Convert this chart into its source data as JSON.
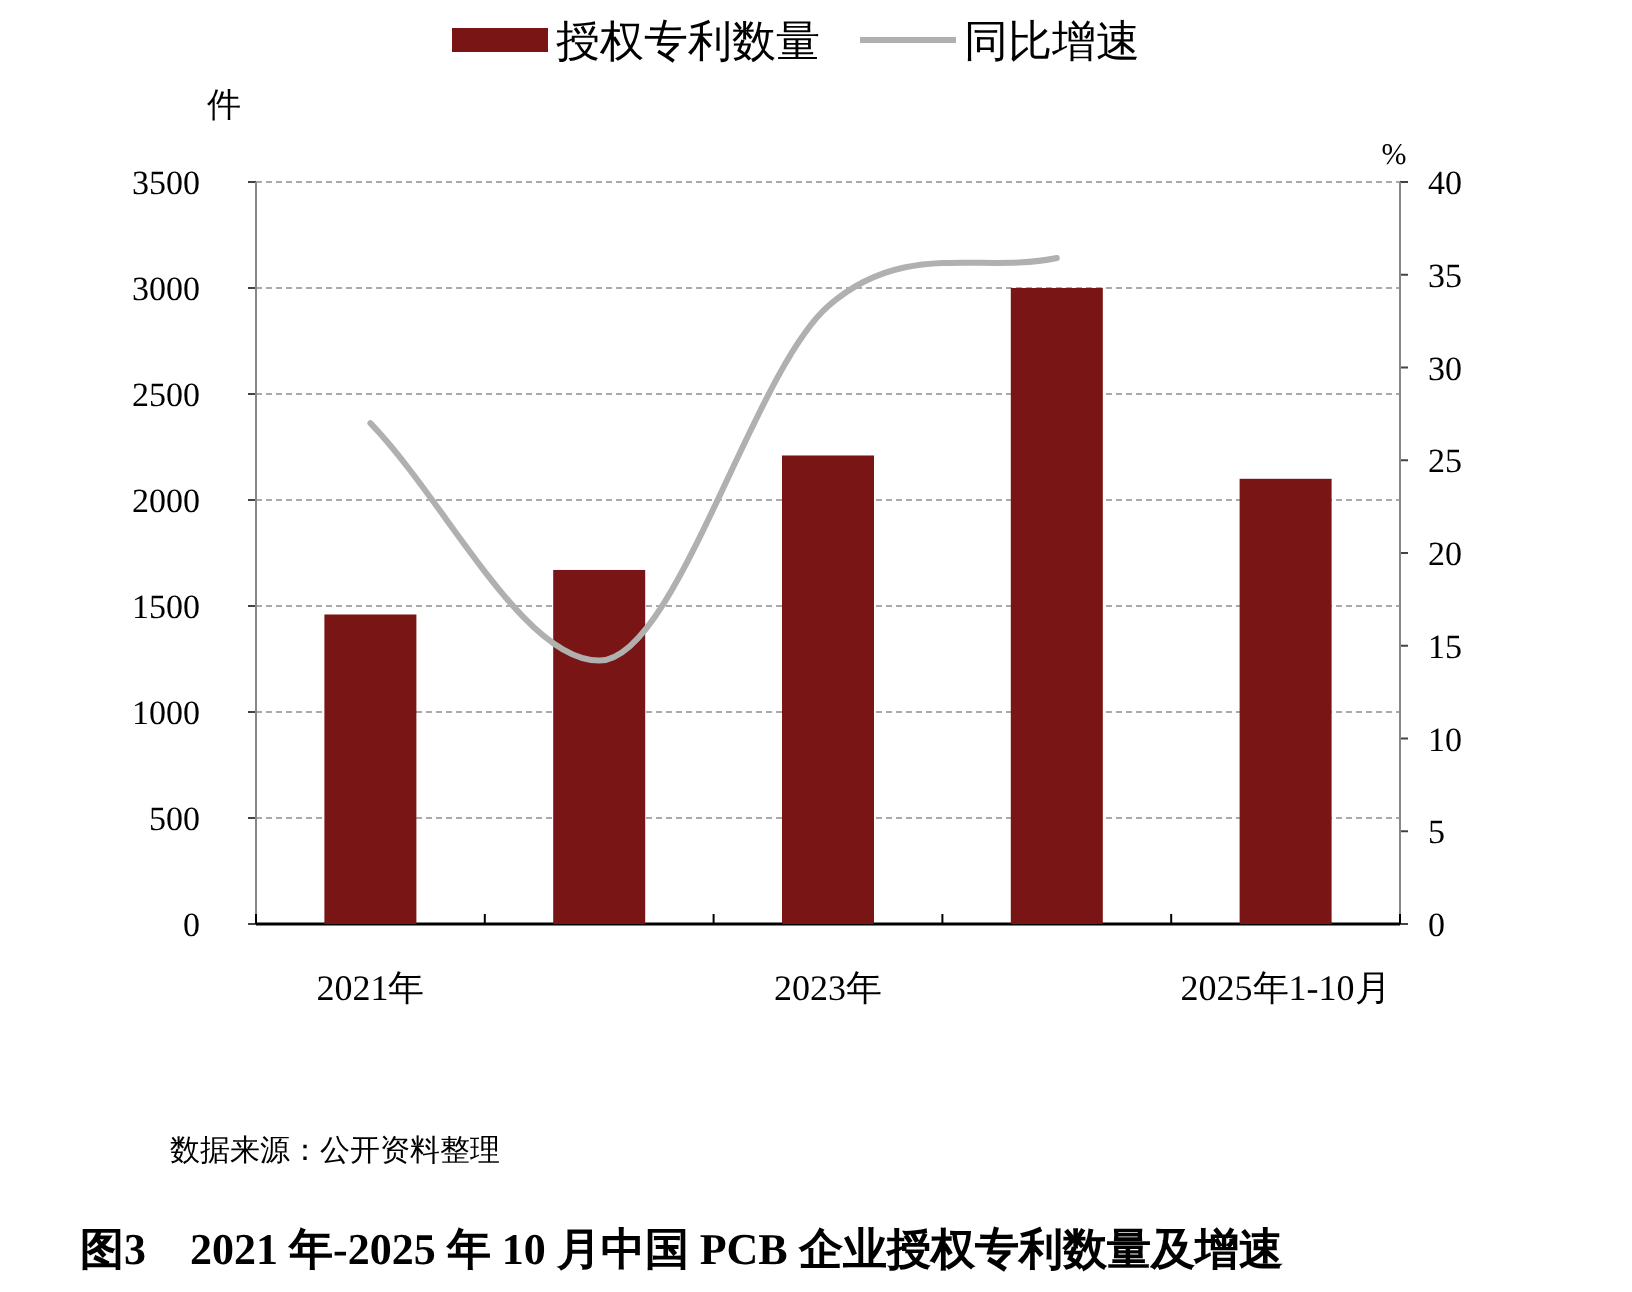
{
  "chart_data": {
    "type": "bar",
    "title": "图3　2021 年-2025 年 10 月中国 PCB 企业授权专利数量及增速",
    "annotations": [
      "数据来源：公开资料整理"
    ],
    "ylabel": "件",
    "y2label": "%",
    "categories": [
      "2021年",
      null,
      "2023年",
      null,
      "2025年1-10月"
    ],
    "series": [
      {
        "name": "授权专利数量",
        "color": "#7a1515",
        "values": [
          1460,
          1670,
          2210,
          3000,
          2100
        ]
      },
      {
        "name": "同比增速",
        "type": "line",
        "axis": "y2",
        "color": "#b0b0b0",
        "values": [
          27,
          14.2,
          33.3,
          35.9,
          null
        ]
      }
    ],
    "ylim": [
      0,
      3500
    ],
    "yticks": [
      0,
      500,
      1000,
      1500,
      2000,
      2500,
      3000,
      3500
    ],
    "y2lim": [
      0,
      40
    ],
    "y2ticks": [
      0,
      5,
      10,
      15,
      20,
      25,
      30,
      35,
      40
    ],
    "grid": "y",
    "legend": "top",
    "marker": "none"
  }
}
